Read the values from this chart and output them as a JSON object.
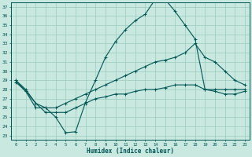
{
  "xlabel": "Humidex (Indice chaleur)",
  "bg_color": "#c8e8e0",
  "grid_color": "#99ccbb",
  "line_color": "#005555",
  "xlim": [
    -0.5,
    23.5
  ],
  "ylim": [
    22.5,
    37.5
  ],
  "xticks": [
    0,
    1,
    2,
    3,
    4,
    5,
    6,
    7,
    8,
    9,
    10,
    11,
    12,
    13,
    14,
    15,
    16,
    17,
    18,
    19,
    20,
    21,
    22,
    23
  ],
  "yticks": [
    23,
    24,
    25,
    26,
    27,
    28,
    29,
    30,
    31,
    32,
    33,
    34,
    35,
    36,
    37
  ],
  "line1_x": [
    0,
    1,
    2,
    3,
    4,
    5,
    6,
    7,
    8,
    9,
    10,
    11,
    12,
    13,
    14,
    15,
    16,
    17,
    18,
    19,
    20,
    21,
    22,
    23
  ],
  "line1_y": [
    29.0,
    27.8,
    26.0,
    26.0,
    25.0,
    23.3,
    23.4,
    26.6,
    29.0,
    31.5,
    33.2,
    34.5,
    35.5,
    36.2,
    37.8,
    37.8,
    36.5,
    35.0,
    33.5,
    28.0,
    28.0,
    28.0,
    28.0,
    28.0
  ],
  "line2_x": [
    0,
    1,
    2,
    3,
    4,
    5,
    6,
    7,
    8,
    9,
    10,
    11,
    12,
    13,
    14,
    15,
    16,
    17,
    18,
    19,
    20,
    21,
    22,
    23
  ],
  "line2_y": [
    29.0,
    28.0,
    26.5,
    26.0,
    26.0,
    26.5,
    27.0,
    27.5,
    28.0,
    28.5,
    29.0,
    29.5,
    30.0,
    30.5,
    31.0,
    31.2,
    31.5,
    32.0,
    33.0,
    31.5,
    31.0,
    30.0,
    29.0,
    28.5
  ],
  "line3_x": [
    0,
    1,
    2,
    3,
    4,
    5,
    6,
    7,
    8,
    9,
    10,
    11,
    12,
    13,
    14,
    15,
    16,
    17,
    18,
    19,
    20,
    21,
    22,
    23
  ],
  "line3_y": [
    28.8,
    27.8,
    26.5,
    25.5,
    25.5,
    25.5,
    26.0,
    26.5,
    27.0,
    27.2,
    27.5,
    27.5,
    27.8,
    28.0,
    28.0,
    28.2,
    28.5,
    28.5,
    28.5,
    28.0,
    27.8,
    27.5,
    27.5,
    27.8
  ]
}
